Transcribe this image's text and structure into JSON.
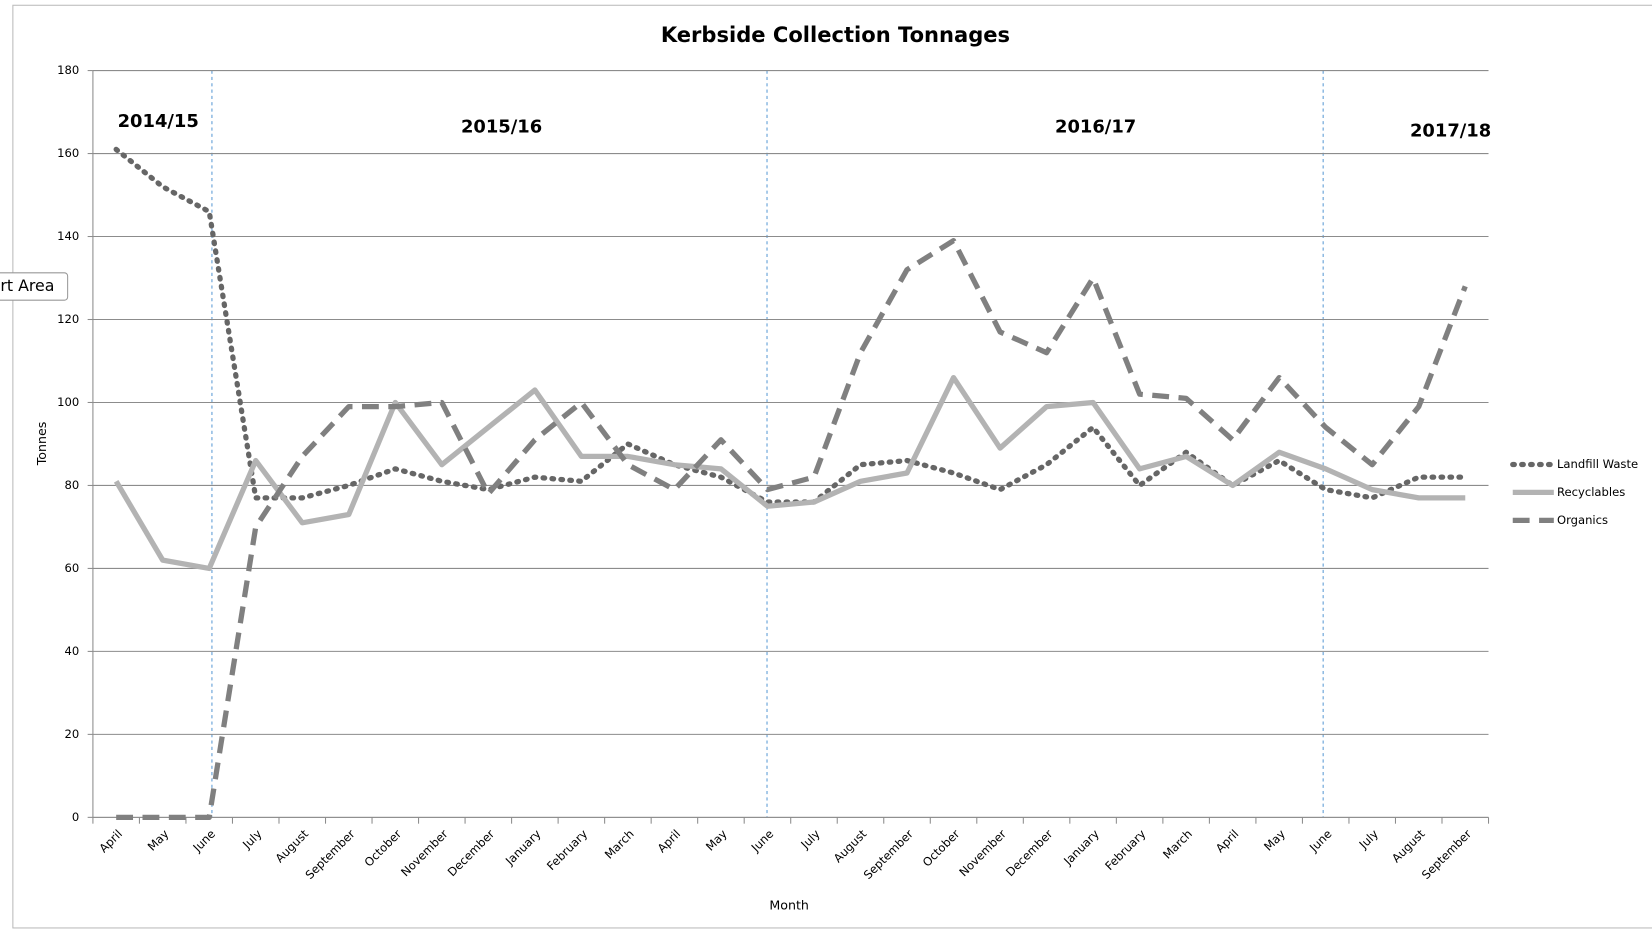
{
  "chart_data": {
    "type": "line",
    "title": "Kerbside Collection Tonnages",
    "x_label": "Month",
    "y_label": "Tonnes",
    "tooltip": "Chart Area",
    "annotations": [
      "2014/15",
      "2015/16",
      "2016/17",
      "2017/18"
    ],
    "categories": [
      "April",
      "May",
      "June",
      "July",
      "August",
      "September",
      "October",
      "November",
      "December",
      "January",
      "February",
      "March",
      "April",
      "May",
      "June",
      "July",
      "August",
      "September",
      "October",
      "November",
      "December",
      "January",
      "February",
      "March",
      "April",
      "May",
      "June",
      "July",
      "August",
      "September"
    ],
    "series": [
      {
        "name": "Landfill Waste",
        "color": "#666666",
        "dash": "dotted",
        "values": [
          161,
          152,
          146,
          77,
          77,
          80,
          84,
          81,
          79,
          82,
          81,
          90,
          85,
          82,
          76,
          76,
          85,
          86,
          83,
          79,
          85,
          94,
          80,
          88,
          80,
          86,
          79,
          77,
          82,
          82
        ]
      },
      {
        "name": "Recyclables",
        "color": "#b3b3b3",
        "dash": "solid",
        "values": [
          81,
          62,
          60,
          86,
          71,
          73,
          100,
          85,
          94,
          103,
          87,
          87,
          85,
          84,
          75,
          76,
          81,
          83,
          106,
          89,
          99,
          100,
          84,
          87,
          80,
          88,
          84,
          79,
          77,
          77
        ]
      },
      {
        "name": "Organics",
        "color": "#808080",
        "dash": "dashed",
        "values": [
          0,
          0,
          0,
          70,
          87,
          99,
          99,
          100,
          78,
          91,
          100,
          85,
          79,
          91,
          79,
          82,
          112,
          132,
          139,
          117,
          112,
          130,
          102,
          101,
          91,
          106,
          94,
          85,
          99,
          128
        ]
      }
    ],
    "ylim": [
      0,
      180
    ],
    "yticks": [
      0,
      20,
      40,
      60,
      80,
      100,
      120,
      140,
      160,
      180
    ],
    "grid": true,
    "legend": "right"
  }
}
